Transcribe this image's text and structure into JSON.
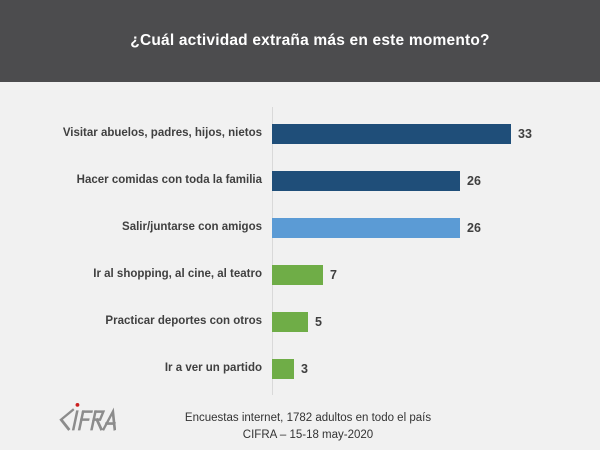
{
  "header": {
    "title": "¿Cuál actividad extraña más en este momento?",
    "background_color": "#4c4c4e",
    "text_color": "#ffffff"
  },
  "chart_data": {
    "type": "bar",
    "orientation": "horizontal",
    "title": "¿Cuál actividad extraña más en este momento?",
    "xlabel": "",
    "ylabel": "",
    "xlim": [
      0,
      45
    ],
    "grid": false,
    "legend": false,
    "value_labels": true,
    "categories": [
      "Visitar abuelos, padres, hijos, nietos",
      "Hacer comidas con toda la familia",
      "Salir/juntarse con amigos",
      "Ir al shopping, al cine, al teatro",
      "Practicar deportes con otros",
      "Ir a ver un partido"
    ],
    "values": [
      33,
      26,
      26,
      7,
      5,
      3
    ],
    "bars": [
      {
        "label": "Visitar abuelos, padres, hijos, nietos",
        "value": 33,
        "color": "#1f4e79"
      },
      {
        "label": "Hacer comidas con toda la familia",
        "value": 26,
        "color": "#1f4e79"
      },
      {
        "label": "Salir/juntarse con amigos",
        "value": 26,
        "color": "#5b9bd5"
      },
      {
        "label": "Ir al shopping, al cine, al teatro",
        "value": 7,
        "color": "#6fad47"
      },
      {
        "label": "Practicar deportes con otros",
        "value": 5,
        "color": "#6fad47"
      },
      {
        "label": "Ir a ver un partido",
        "value": 3,
        "color": "#6fad47"
      }
    ],
    "colors": {
      "dark_blue": "#1f4e79",
      "light_blue": "#5b9bd5",
      "green": "#6fad47",
      "axis_line": "#d9d9d9"
    }
  },
  "footer": {
    "logo_text": "CIFRA",
    "logo_color": "#8c8c8c",
    "logo_dot_color": "#cc1f1f",
    "line1": "Encuestas internet, 1782 adultos en todo el país",
    "line2": "CIFRA – 15-18 may-2020"
  }
}
